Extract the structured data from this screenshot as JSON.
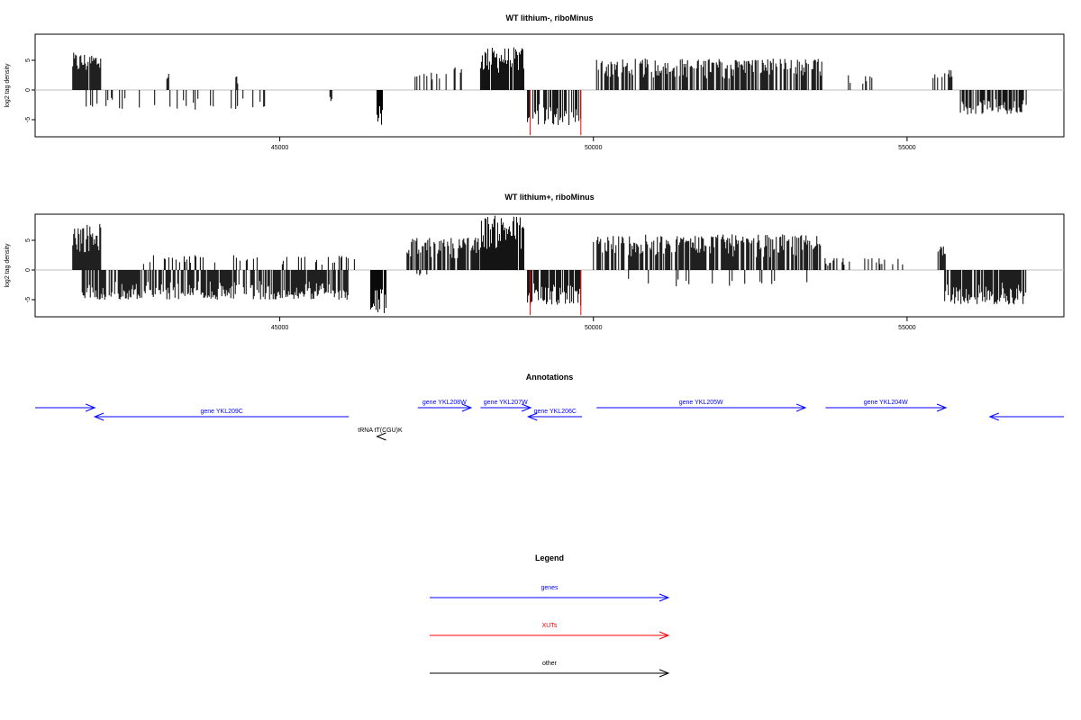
{
  "chart_data": [
    {
      "type": "bar",
      "title": "WT lithium-, riboMinus",
      "xlabel": "",
      "ylabel": "log2 tag density",
      "xlim": [
        41100,
        57500
      ],
      "ylim": [
        -8,
        9.5
      ],
      "x_ticks": [
        45000,
        50000,
        55000
      ],
      "y_ticks": [
        -5,
        0,
        5
      ],
      "grid": false,
      "series": [
        {
          "strand": "plus",
          "color": "#000000",
          "segments": [
            {
              "start": 41700,
              "end": 42150,
              "max": 6.3,
              "density": 0.95
            },
            {
              "start": 43200,
              "end": 43230,
              "max": 3.0,
              "density": 1.0
            },
            {
              "start": 44300,
              "end": 44330,
              "max": 2.8,
              "density": 1.0
            },
            {
              "start": 47100,
              "end": 47550,
              "max": 3.0,
              "density": 0.3
            },
            {
              "start": 47550,
              "end": 48000,
              "max": 4.5,
              "density": 0.25
            },
            {
              "start": 48200,
              "end": 48900,
              "max": 7.2,
              "density": 0.95
            },
            {
              "start": 50050,
              "end": 53650,
              "max": 5.3,
              "density": 0.7
            },
            {
              "start": 53950,
              "end": 54450,
              "max": 3.0,
              "density": 0.25
            },
            {
              "start": 55400,
              "end": 55720,
              "max": 3.5,
              "density": 0.3
            }
          ]
        },
        {
          "strand": "minus",
          "color": "#000000",
          "segments": [
            {
              "start": 41900,
              "end": 44800,
              "max": 3.5,
              "density": 0.12
            },
            {
              "start": 45800,
              "end": 45830,
              "max": 2.0,
              "density": 1.0
            },
            {
              "start": 46550,
              "end": 46650,
              "max": 6.0,
              "density": 0.95
            },
            {
              "start": 48950,
              "end": 49800,
              "max": 6.0,
              "density": 0.6
            },
            {
              "start": 55850,
              "end": 56900,
              "max": 4.2,
              "density": 0.75
            }
          ]
        },
        {
          "strand": "minus",
          "color": "#ff0000",
          "segments": [
            {
              "start": 48990,
              "end": 48990,
              "max": 7.6,
              "density": 1.0
            },
            {
              "start": 49800,
              "end": 49800,
              "max": 7.6,
              "density": 1.0
            }
          ]
        }
      ]
    },
    {
      "type": "bar",
      "title": "WT lithium+, riboMinus",
      "xlabel": "",
      "ylabel": "log2 tag density",
      "xlim": [
        41100,
        57500
      ],
      "ylim": [
        -8,
        9.5
      ],
      "x_ticks": [
        45000,
        50000,
        55000
      ],
      "y_ticks": [
        -5,
        0,
        5
      ],
      "grid": false,
      "series": [
        {
          "strand": "plus",
          "color": "#000000",
          "segments": [
            {
              "start": 41700,
              "end": 42150,
              "max": 7.8,
              "density": 0.95
            },
            {
              "start": 42800,
              "end": 46200,
              "max": 2.5,
              "density": 0.2
            },
            {
              "start": 47000,
              "end": 48200,
              "max": 5.5,
              "density": 0.75
            },
            {
              "start": 48200,
              "end": 48900,
              "max": 9.2,
              "density": 0.95
            },
            {
              "start": 50000,
              "end": 53650,
              "max": 6.0,
              "density": 0.75
            },
            {
              "start": 53650,
              "end": 55000,
              "max": 2.0,
              "density": 0.2
            },
            {
              "start": 55450,
              "end": 55650,
              "max": 4.0,
              "density": 0.5
            }
          ]
        },
        {
          "strand": "minus",
          "color": "#000000",
          "segments": [
            {
              "start": 41850,
              "end": 46100,
              "max": 5.0,
              "density": 0.8
            },
            {
              "start": 46450,
              "end": 46700,
              "max": 7.5,
              "density": 0.9
            },
            {
              "start": 47100,
              "end": 47500,
              "max": 1.0,
              "density": 0.2
            },
            {
              "start": 48950,
              "end": 49800,
              "max": 6.0,
              "density": 0.9
            },
            {
              "start": 50000,
              "end": 53500,
              "max": 2.8,
              "density": 0.08
            },
            {
              "start": 55600,
              "end": 56900,
              "max": 5.8,
              "density": 0.9
            }
          ]
        },
        {
          "strand": "minus",
          "color": "#ff0000",
          "segments": [
            {
              "start": 48990,
              "end": 48990,
              "max": 7.6,
              "density": 1.0
            },
            {
              "start": 49800,
              "end": 49800,
              "max": 7.6,
              "density": 1.0
            }
          ]
        }
      ]
    }
  ],
  "annotations": {
    "title": "Annotations",
    "xlim": [
      41100,
      57500
    ],
    "features": [
      {
        "label": "",
        "start": 41100,
        "end": 42050,
        "strand": "+",
        "row": 0,
        "kind": "genes"
      },
      {
        "label": "gene YKL209C",
        "start": 42050,
        "end": 46100,
        "strand": "-",
        "row": 1,
        "kind": "genes"
      },
      {
        "label": "gene YKL208W",
        "start": 47200,
        "end": 48050,
        "strand": "+",
        "row": 0,
        "kind": "genes"
      },
      {
        "label": "gene YKL207W",
        "start": 48200,
        "end": 49000,
        "strand": "+",
        "row": 0,
        "kind": "genes"
      },
      {
        "label": "gene YKL206C",
        "start": 48960,
        "end": 49820,
        "strand": "-",
        "row": 1,
        "kind": "genes"
      },
      {
        "label": "gene YKL205W",
        "start": 50050,
        "end": 53380,
        "strand": "+",
        "row": 0,
        "kind": "genes"
      },
      {
        "label": "gene YKL204W",
        "start": 53700,
        "end": 55620,
        "strand": "+",
        "row": 0,
        "kind": "genes"
      },
      {
        "label": "",
        "start": 56320,
        "end": 57500,
        "strand": "-",
        "row": 1,
        "kind": "genes"
      },
      {
        "label": "tRNA tT(CGU)K",
        "start": 46550,
        "end": 46650,
        "strand": "-",
        "row": 2,
        "kind": "other"
      }
    ]
  },
  "legend": {
    "title": "Legend",
    "items": [
      {
        "label": "genes",
        "color": "#0000ff"
      },
      {
        "label": "XUTs",
        "color": "#ff0000"
      },
      {
        "label": "other",
        "color": "#000000"
      }
    ]
  }
}
